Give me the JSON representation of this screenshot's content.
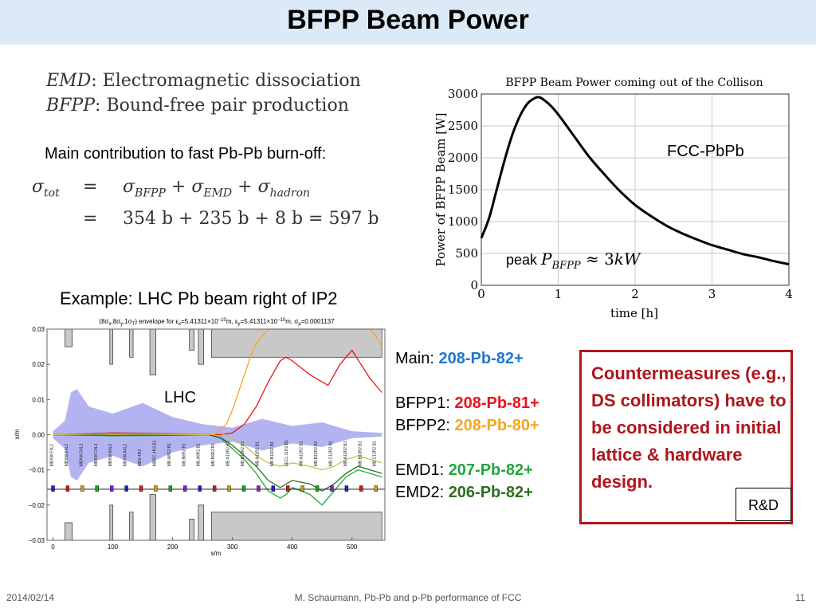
{
  "slide": {
    "title": "BFPP Beam Power",
    "defs": [
      {
        "abbr": "EMD",
        "text": ": Electromagnetic dissociation"
      },
      {
        "abbr": "BFPP",
        "text": ": Bound-free pair production"
      }
    ],
    "main_contribution": "Main contribution to fast Pb-Pb burn-off:",
    "equation": {
      "lhs": "σ",
      "lhs_sub": "tot",
      "eq": "=",
      "terms": [
        {
          "sym": "σ",
          "sub": "BFPP"
        },
        {
          "sym": "σ",
          "sub": "EMD"
        },
        {
          "sym": "σ",
          "sub": "hadron"
        }
      ],
      "plus": "+",
      "row2": "354 b + 235 b + 8 b = 597 b"
    },
    "example": "Example: LHC Pb beam right of IP2",
    "species": [
      {
        "label": "Main:",
        "value": "208-Pb-82+",
        "color": "#1f77d0"
      },
      {
        "label": "BFPP1:",
        "value": "208-Pb-81+",
        "color": "#e8141c"
      },
      {
        "label": "BFPP2:",
        "value": "208-Pb-80+",
        "color": "#f5a623"
      },
      {
        "label": "EMD1:",
        "value": "207-Pb-82+",
        "color": "#1fa83b"
      },
      {
        "label": "EMD2:",
        "value": "206-Pb-82+",
        "color": "#2e6e1e"
      }
    ],
    "countermeasures": "Countermeasures (e.g., DS collimators) have to be considered in initial lattice & hardware design.",
    "rd": "R&D",
    "footer": {
      "date": "2014/02/14",
      "center": "M. Schaumann, Pb-Pb and p-Pb performance of FCC",
      "page": "11"
    }
  },
  "chart_data": [
    {
      "type": "line",
      "title": "BFPP Beam Power coming out of the Collison",
      "xlabel": "time [h]",
      "ylabel": "Power of BFPP Beam [W]",
      "xlim": [
        0,
        4
      ],
      "ylim": [
        0,
        3000
      ],
      "xticks": [
        0,
        1,
        2,
        3,
        4
      ],
      "yticks": [
        0,
        500,
        1000,
        1500,
        2000,
        2500,
        3000
      ],
      "grid": true,
      "x": [
        0,
        0.1,
        0.2,
        0.3,
        0.4,
        0.5,
        0.6,
        0.7,
        0.75,
        0.8,
        0.9,
        1.0,
        1.2,
        1.4,
        1.6,
        1.8,
        2.0,
        2.2,
        2.4,
        2.6,
        2.8,
        3.0,
        3.2,
        3.4,
        3.6,
        3.8,
        4.0
      ],
      "y": [
        740,
        1050,
        1500,
        1950,
        2350,
        2650,
        2850,
        2940,
        2950,
        2920,
        2820,
        2680,
        2350,
        2020,
        1740,
        1480,
        1260,
        1090,
        940,
        820,
        720,
        630,
        560,
        490,
        440,
        380,
        330
      ],
      "annotations": [
        "FCC-PbPb",
        "peak P_BFPP ≈ 3kW"
      ]
    },
    {
      "type": "line",
      "title": "(8σx,8σy,1σT) envelope for εx=5.41311×10⁻¹⁰m, εy=5.41311×10⁻¹⁰m, σp=0.0001137",
      "xlabel": "s/m",
      "ylabel": "x/m",
      "xlim": [
        -10,
        555
      ],
      "ylim": [
        -0.03,
        0.03
      ],
      "xticks": [
        0,
        100,
        200,
        300,
        400,
        500
      ],
      "yticks": [
        -0.03,
        -0.02,
        -0.01,
        0.0,
        0.01,
        0.02,
        0.03
      ],
      "annotations": [
        "LHC"
      ],
      "series": [
        {
          "color": "#9999ee",
          "x": [
            0,
            20,
            30,
            40,
            60,
            100,
            150,
            200,
            250,
            300,
            350,
            400,
            450,
            500,
            550
          ],
          "y": [
            0.001,
            0.004,
            0.012,
            0.013,
            0.008,
            0.006,
            0.009,
            0.005,
            0.003,
            0.002,
            0.0045,
            0.0025,
            0.0035,
            0.001,
            0.0005
          ]
        },
        {
          "color": "#e8141c",
          "x": [
            0,
            100,
            200,
            250,
            280,
            300,
            320,
            340,
            360,
            380,
            390,
            400,
            430,
            460,
            480,
            500,
            530,
            550
          ],
          "y": [
            0,
            0.0005,
            0.0003,
            0.0001,
            0,
            0.0005,
            0.003,
            0.008,
            0.015,
            0.021,
            0.022,
            0.021,
            0.017,
            0.014,
            0.02,
            0.024,
            0.016,
            0.012
          ]
        },
        {
          "color": "#f5a623",
          "x": [
            0,
            200,
            270,
            290,
            300,
            310,
            320,
            330,
            340,
            360,
            380,
            400,
            450,
            500,
            530,
            540,
            550
          ],
          "y": [
            0,
            0.0002,
            0,
            0.003,
            0.007,
            0.012,
            0.017,
            0.022,
            0.026,
            0.03,
            0.03,
            0.03,
            0.03,
            0.03,
            0.03,
            0.028,
            0.025
          ]
        },
        {
          "color": "#1fa83b",
          "x": [
            0,
            100,
            200,
            260,
            280,
            300,
            320,
            340,
            360,
            380,
            390,
            400,
            430,
            450,
            470,
            490,
            510,
            530,
            550
          ],
          "y": [
            0,
            -0.0003,
            -0.0002,
            0,
            -0.001,
            -0.004,
            -0.007,
            -0.011,
            -0.016,
            -0.018,
            -0.017,
            -0.015,
            -0.017,
            -0.02,
            -0.016,
            -0.012,
            -0.01,
            -0.011,
            -0.012
          ]
        },
        {
          "color": "#2e6e1e",
          "x": [
            0,
            100,
            200,
            260,
            280,
            300,
            320,
            340,
            360,
            380,
            400,
            430,
            450,
            470,
            490,
            510,
            530,
            550
          ],
          "y": [
            0,
            -0.0002,
            -0.0001,
            0,
            -0.0008,
            -0.003,
            -0.006,
            -0.009,
            -0.013,
            -0.015,
            -0.013,
            -0.014,
            -0.016,
            -0.014,
            -0.011,
            -0.009,
            -0.01,
            -0.011
          ]
        },
        {
          "color": "#c8c050",
          "x": [
            0,
            100,
            200,
            260,
            280,
            300,
            320,
            340,
            360,
            380,
            400,
            430,
            450,
            470,
            490,
            510,
            530,
            550
          ],
          "y": [
            0,
            0.0002,
            0.0001,
            0,
            0.0005,
            -0.001,
            -0.003,
            -0.006,
            -0.008,
            -0.009,
            -0.008,
            -0.009,
            -0.01,
            -0.009,
            -0.007,
            -0.006,
            -0.007,
            -0.008
          ]
        }
      ],
      "magnet_labels": [
        "MBXW.F4L2",
        "MBXW.E4L2",
        "MBXW.D4L2",
        "MBXW.C4L2",
        "MBXW.B4L2",
        "MBXW.A4L2",
        "MBX.4R2",
        "MBRC.4R2.B1",
        "MB.A8R2.B1",
        "MB.B8R2.B1",
        "MB.A9R2.B1",
        "MB.B9R2.B1",
        "MB.A10R2.B1",
        "MB.B10R2.B1",
        "MB.A11R2.B1",
        "MB.B11R2.B1",
        "LECL.11R2.B1",
        "MB.A12R2.B1",
        "MB.B12R2.B1",
        "MB.C12R2.B1",
        "MB.A13R2.B1",
        "MB.B13R2.B1",
        "MB.C13R2.B1"
      ]
    }
  ]
}
